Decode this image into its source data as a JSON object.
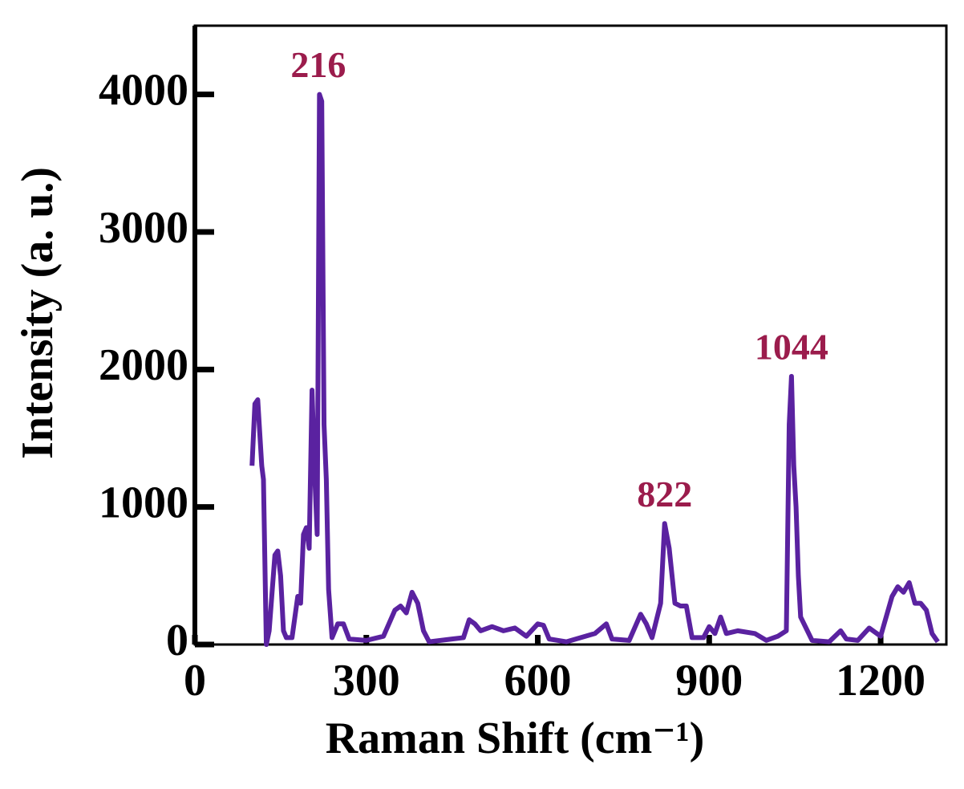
{
  "chart_data": {
    "type": "line",
    "x_label": "Raman Shift (cm⁻¹)",
    "y_label": "Intensity (a. u.)",
    "xlim": [
      0,
      1315
    ],
    "ylim": [
      0,
      4500
    ],
    "xticks": [
      0,
      300,
      600,
      900,
      1200
    ],
    "yticks": [
      0,
      1000,
      2000,
      3000,
      4000
    ],
    "annotation_color": "#9b1c4c",
    "annotations": [
      {
        "text": "216",
        "x": 216,
        "y": 4000
      },
      {
        "text": "822",
        "x": 822,
        "y": 880
      },
      {
        "text": "1044",
        "x": 1044,
        "y": 1950
      }
    ],
    "x": [
      100,
      105,
      110,
      117,
      120,
      125,
      130,
      140,
      145,
      150,
      155,
      160,
      170,
      180,
      185,
      190,
      195,
      200,
      205,
      210,
      214,
      218,
      222,
      226,
      230,
      234,
      240,
      250,
      260,
      270,
      300,
      330,
      350,
      360,
      370,
      380,
      390,
      400,
      410,
      450,
      470,
      480,
      490,
      500,
      520,
      540,
      560,
      580,
      600,
      610,
      620,
      650,
      700,
      720,
      730,
      760,
      780,
      790,
      800,
      815,
      822,
      830,
      840,
      850,
      860,
      870,
      890,
      900,
      910,
      920,
      930,
      950,
      980,
      1000,
      1020,
      1035,
      1040,
      1044,
      1048,
      1052,
      1056,
      1060,
      1080,
      1110,
      1130,
      1140,
      1160,
      1180,
      1200,
      1220,
      1230,
      1240,
      1250,
      1260,
      1270,
      1280,
      1290,
      1300
    ],
    "series": [
      {
        "color": "#5a22a0",
        "values": [
          1300,
          1750,
          1780,
          1300,
          1200,
          0,
          100,
          650,
          680,
          500,
          100,
          50,
          50,
          350,
          300,
          800,
          850,
          700,
          1850,
          1200,
          800,
          4000,
          3950,
          1600,
          1200,
          400,
          50,
          150,
          150,
          40,
          30,
          60,
          250,
          280,
          230,
          380,
          300,
          100,
          20,
          40,
          50,
          180,
          150,
          100,
          130,
          100,
          120,
          60,
          150,
          140,
          40,
          20,
          80,
          150,
          40,
          30,
          220,
          150,
          50,
          300,
          880,
          700,
          300,
          280,
          280,
          50,
          50,
          130,
          80,
          200,
          80,
          100,
          80,
          30,
          60,
          100,
          1600,
          1950,
          1300,
          1000,
          500,
          200,
          30,
          20,
          100,
          40,
          30,
          120,
          60,
          350,
          420,
          380,
          450,
          300,
          300,
          250,
          80,
          20
        ]
      }
    ]
  }
}
